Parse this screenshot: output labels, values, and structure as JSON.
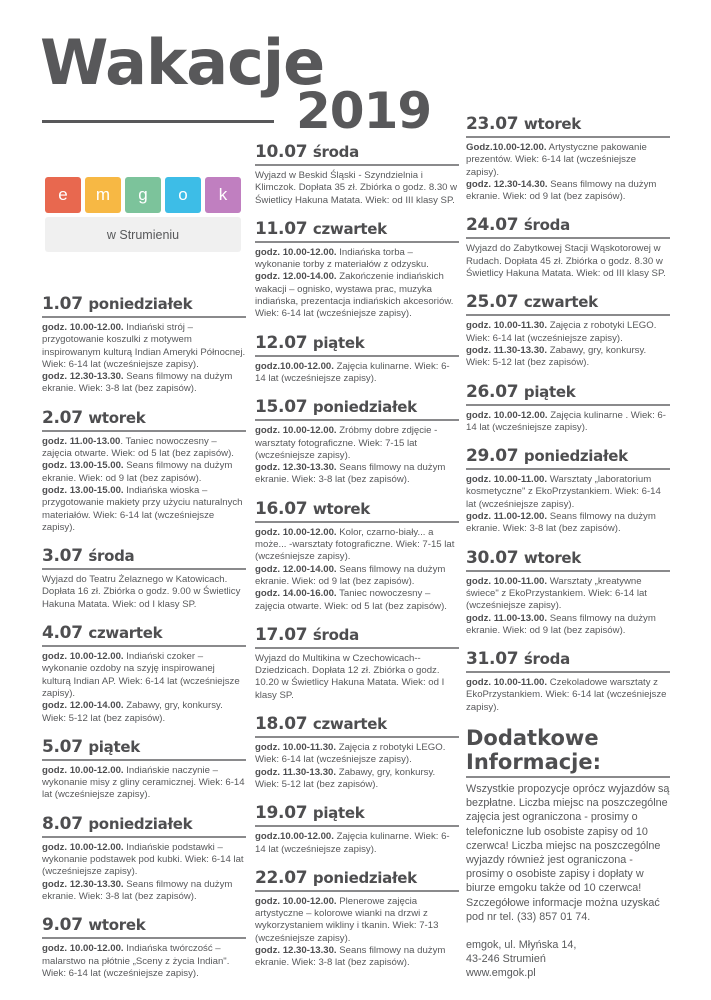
{
  "header": {
    "title": "Wakacje",
    "year": "2019"
  },
  "logo": {
    "letters": [
      "e",
      "m",
      "g",
      "o",
      "k"
    ],
    "colors": [
      "#e8684f",
      "#f7b844",
      "#7cc39b",
      "#3dbde7",
      "#c07fc0"
    ],
    "subtitle": "w Strumieniu"
  },
  "columns": [
    [
      {
        "date": "1.07",
        "day": "poniedziałek",
        "items": [
          {
            "time": "godz. 10.00-12.00.",
            "text": " Indiański strój – przygotowanie koszulki z motywem inspirowanym kulturą Indian Ameryki Północnej. Wiek: 6-14 lat (wcześniejsze zapisy)."
          },
          {
            "time": "godz. 12.30-13.30.",
            "text": " Seans filmowy na dużym ekranie. Wiek: 3-8 lat (bez zapisów)."
          }
        ]
      },
      {
        "date": "2.07",
        "day": "wtorek",
        "items": [
          {
            "time": "godz. 11.00-13.00",
            "text": ". Taniec nowoczesny – zajęcia otwarte. Wiek: od 5 lat (bez zapisów)."
          },
          {
            "time": "godz. 13.00-15.00.",
            "text": " Seans filmowy na dużym ekranie. Wiek: od 9 lat (bez zapisów)."
          },
          {
            "time": "godz. 13.00-15.00.",
            "text": " Indiańska wioska – przygotowanie makiety przy użyciu naturalnych materiałów. Wiek: 6-14 lat (wcześniejsze zapisy)."
          }
        ]
      },
      {
        "date": "3.07",
        "day": "środa",
        "items": [
          {
            "time": "",
            "text": "Wyjazd do Teatru Żelaznego w Katowicach. Dopłata 16 zł. Zbiórka o godz. 9.00 w Świetlicy Hakuna Matata. Wiek: od I klasy SP."
          }
        ]
      },
      {
        "date": "4.07",
        "day": "czwartek",
        "items": [
          {
            "time": "godz. 10.00-12.00.",
            "text": " Indiański czoker – wykonanie ozdoby na szyję inspirowanej kulturą Indian AP. Wiek: 6-14 lat (wcześniejsze zapisy)."
          },
          {
            "time": "godz. 12.00-14.00.",
            "text": " Zabawy, gry, konkursy. Wiek: 5-12 lat (bez zapisów)."
          }
        ]
      },
      {
        "date": "5.07",
        "day": "piątek",
        "items": [
          {
            "time": "godz. 10.00-12.00.",
            "text": " Indiańskie naczynie – wykonanie misy z gliny ceramicznej. Wiek: 6-14 lat (wcześniejsze zapisy)."
          }
        ]
      },
      {
        "date": "8.07",
        "day": "poniedziałek",
        "items": [
          {
            "time": "godz. 10.00-12.00.",
            "text": " Indiańskie podstawki – wykonanie podstawek pod kubki. Wiek: 6-14 lat (wcześniejsze zapisy)."
          },
          {
            "time": "godz. 12.30-13.30.",
            "text": " Seans filmowy na dużym ekranie. Wiek: 3-8 lat (bez zapisów)."
          }
        ]
      },
      {
        "date": "9.07",
        "day": "wtorek",
        "items": [
          {
            "time": "godz. 10.00-12.00.",
            "text": " Indiańska twórczość – malarstwo na płótnie „Sceny z życia Indian\". Wiek: 6-14 lat (wcześniejsze zapisy)."
          }
        ]
      }
    ],
    [
      {
        "date": "10.07",
        "day": "środa",
        "items": [
          {
            "time": "",
            "text": "Wyjazd w Beskid Śląski - Szyndzielnia i Klimczok. Dopłata 35 zł. Zbiórka o godz. 8.30 w Świetlicy Hakuna Matata. Wiek: od III klasy SP."
          }
        ]
      },
      {
        "date": "11.07",
        "day": "czwartek",
        "items": [
          {
            "time": "godz. 10.00-12.00.",
            "text": " Indiańska torba – wykonanie torby z materiałów z odzysku."
          },
          {
            "time": "godz. 12.00-14.00.",
            "text": " Zakończenie indiańskich wakacji – ognisko, wystawa prac, muzyka indiańska, prezentacja indiańskich akcesoriów. Wiek: 6-14 lat (wcześniejsze zapisy)."
          }
        ]
      },
      {
        "date": "12.07",
        "day": "piątek",
        "items": [
          {
            "time": "godz.10.00-12.00.",
            "text": " Zajęcia kulinarne. Wiek: 6-14 lat (wcześniejsze zapisy)."
          }
        ]
      },
      {
        "date": "15.07",
        "day": "poniedziałek",
        "items": [
          {
            "time": "godz. 10.00-12.00.",
            "text": " Zróbmy dobre zdjęcie - warsztaty fotograficzne. Wiek: 7-15 lat (wcześniejsze zapisy)."
          },
          {
            "time": "godz. 12.30-13.30.",
            "text": " Seans filmowy na dużym ekranie. Wiek: 3-8 lat (bez zapisów)."
          }
        ]
      },
      {
        "date": "16.07",
        "day": "wtorek",
        "items": [
          {
            "time": "godz. 10.00-12.00.",
            "text": " Kolor, czarno-biały... a może... -warsztaty fotograficzne. Wiek: 7-15 lat (wcześniejsze zapisy)."
          },
          {
            "time": "godz. 12.00-14.00.",
            "text": " Seans filmowy na dużym ekranie. Wiek: od 9 lat (bez zapisów)."
          },
          {
            "time": "godz. 14.00-16.00.",
            "text": " Taniec nowoczesny – zajęcia otwarte. Wiek: od 5 lat (bez zapisów)."
          }
        ]
      },
      {
        "date": "17.07",
        "day": "środa",
        "items": [
          {
            "time": "",
            "text": "Wyjazd do Multikina w Czechowicach--Dziedzicach. Dopłata 12 zł. Zbiórka o godz. 10.20 w Świetlicy Hakuna Matata. Wiek: od I klasy SP."
          }
        ]
      },
      {
        "date": "18.07",
        "day": "czwartek",
        "items": [
          {
            "time": "godz. 10.00-11.30.",
            "text": " Zajęcia z robotyki LEGO. Wiek: 6-14 lat (wcześniejsze zapisy)."
          },
          {
            "time": "godz. 11.30-13.30.",
            "text": " Zabawy, gry, konkursy. Wiek: 5-12 lat (bez zapisów)."
          }
        ]
      },
      {
        "date": "19.07",
        "day": "piątek",
        "items": [
          {
            "time": "godz.10.00-12.00.",
            "text": " Zajęcia kulinarne. Wiek: 6-14 lat (wcześniejsze zapisy)."
          }
        ]
      },
      {
        "date": "22.07",
        "day": "poniedziałek",
        "items": [
          {
            "time": "godz. 10.00-12.00.",
            "text": " Plenerowe zajęcia artystyczne – kolorowe wianki na drzwi z wykorzystaniem wikliny i tkanin. Wiek: 7-13 (wcześniejsze zapisy)."
          },
          {
            "time": "godz. 12.30-13.30.",
            "text": " Seans filmowy na dużym ekranie.  Wiek: 3-8 lat (bez zapisów)."
          }
        ]
      }
    ],
    [
      {
        "date": "23.07",
        "day": "wtorek",
        "items": [
          {
            "time": "Godz.10.00-12.00.",
            "text": " Artystyczne pakowanie prezentów. Wiek: 6-14 lat (wcześniejsze zapisy)."
          },
          {
            "time": "godz. 12.30-14.30.",
            "text": " Seans filmowy na dużym ekranie. Wiek: od 9 lat (bez zapisów)."
          }
        ]
      },
      {
        "date": "24.07",
        "day": "środa",
        "items": [
          {
            "time": "",
            "text": "Wyjazd do Zabytkowej Stacji Wąskotorowej w Rudach. Dopłata 45 zł. Zbiórka o godz. 8.30 w Świetlicy Hakuna Matata. Wiek: od III klasy SP."
          }
        ]
      },
      {
        "date": "25.07",
        "day": "czwartek",
        "items": [
          {
            "time": "godz. 10.00-11.30.",
            "text": " Zajęcia z robotyki LEGO. Wiek: 6-14 lat (wcześniejsze zapisy)."
          },
          {
            "time": "godz. 11.30-13.30.",
            "text": " Zabawy, gry, konkursy. Wiek: 5-12 lat (bez zapisów)."
          }
        ]
      },
      {
        "date": "26.07",
        "day": "piątek",
        "items": [
          {
            "time": "godz. 10.00-12.00.",
            "text": " Zajęcia kulinarne . Wiek: 6-14 lat (wcześniejsze zapisy)."
          }
        ]
      },
      {
        "date": "29.07",
        "day": "poniedziałek",
        "items": [
          {
            "time": "godz. 10.00-11.00.",
            "text": " Warsztaty „laboratorium kosmetyczne\" z EkoPrzystankiem. Wiek: 6-14 lat (wcześniejsze zapisy)."
          },
          {
            "time": "godz. 11.00-12.00.",
            "text": " Seans filmowy na dużym ekranie.  Wiek: 3-8 lat (bez zapisów)."
          }
        ]
      },
      {
        "date": "30.07",
        "day": "wtorek",
        "items": [
          {
            "time": "godz. 10.00-11.00.",
            "text": " Warsztaty „kreatywne świece\" z EkoPrzystankiem. Wiek: 6-14 lat (wcześniejsze zapisy)."
          },
          {
            "time": "godz. 11.00-13.00.",
            "text": " Seans filmowy na dużym ekranie. Wiek: od 9 lat (bez zapisów)."
          }
        ]
      },
      {
        "date": "31.07",
        "day": "środa",
        "items": [
          {
            "time": "godz. 10.00-11.00.",
            "text": " Czekoladowe warsztaty z EkoPrzystankiem. Wiek: 6-14 lat (wcześniejsze zapisy)."
          }
        ]
      }
    ]
  ],
  "info": {
    "heading_line1": "Dodatkowe",
    "heading_line2": "Informacje:",
    "text": "Wszystkie propozycje oprócz wyjazdów są bezpłatne. Liczba miejsc na poszczególne zajęcia jest ograniczona - prosimy o telefoniczne lub osobiste zapisy od 10 czerwca! Liczba miejsc na poszczególne wyjazdy również  jest ograniczona - prosimy o osobiste zapisy i dopłaty w biurze emgoku także od 10 czerwca! Szczegółowe informacje można uzyskać pod nr tel. (33) 857 01 74.",
    "address_line1": "emgok, ul. Młyńska 14,",
    "address_line2": "43-246 Strumień",
    "website": "www.emgok.pl"
  }
}
